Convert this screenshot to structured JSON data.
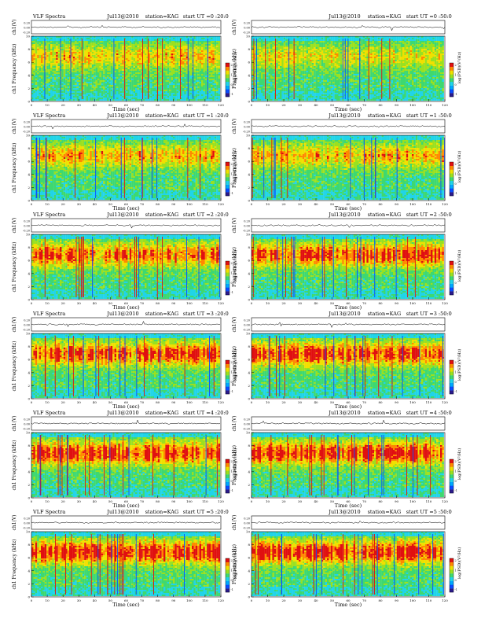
{
  "colors": {
    "background": "#ffffff",
    "axis": "#000000",
    "colormap": [
      "#2a1a8c",
      "#0a4cff",
      "#00a8ff",
      "#20d4e8",
      "#3ed870",
      "#9ae020",
      "#f0e000",
      "#ff8800",
      "#e01010"
    ]
  },
  "chart_data": [
    {
      "type": "heatmap",
      "header": {
        "left": "VLF Spectra",
        "date": "Jul13@2010",
        "station": "station=KAG",
        "start": "start  UT =0 :20:0"
      },
      "ch_ylabel": "ch1(V)",
      "ch_ticks": [
        "0.20",
        "0.00",
        "-0.20"
      ],
      "ylabel": "ch1 Frequency (kHz)",
      "xlabel": "Time (sec)",
      "xlim": [
        0,
        120
      ],
      "ylim": [
        0,
        10
      ],
      "xticks": [
        "0",
        "10",
        "20",
        "30",
        "40",
        "50",
        "60",
        "70",
        "80",
        "90",
        "100",
        "110",
        "120"
      ],
      "yticks": [
        "0",
        "2",
        "4",
        "6",
        "8",
        "10"
      ],
      "colorbar_label": "log(PSD)(V²/Hz)",
      "colorbar_ticks": [
        "2",
        "1",
        "0",
        "-1"
      ],
      "activity": 0.45
    },
    {
      "type": "heatmap",
      "header": {
        "left": "",
        "date": "Jul13@2010",
        "station": "station=KAG",
        "start": "start  UT =0 :50:0"
      },
      "ch_ylabel": "ch1(V)",
      "ch_ticks": [
        "0.20",
        "0.00",
        "-0.20"
      ],
      "ylabel": "Frequency (kHz)",
      "xlabel": "Time (sec)",
      "xlim": [
        0,
        120
      ],
      "ylim": [
        0,
        10
      ],
      "xticks": [
        "0",
        "10",
        "20",
        "30",
        "40",
        "50",
        "60",
        "70",
        "80",
        "90",
        "100",
        "110",
        "120"
      ],
      "yticks": [
        "0",
        "2",
        "4",
        "6",
        "8",
        "10"
      ],
      "colorbar_label": "log(PSD)(V²/Hz)",
      "colorbar_ticks": [
        "2",
        "1",
        "0",
        "-1"
      ],
      "activity": 0.35
    },
    {
      "type": "heatmap",
      "header": {
        "left": "VLF Spectra",
        "date": "Jul13@2010",
        "station": "station=KAG",
        "start": "start  UT =1 :20:0"
      },
      "ch_ylabel": "ch1(V)",
      "ch_ticks": [
        "0.20",
        "0.00",
        "-0.20"
      ],
      "ylabel": "ch1 Frequency (kHz)",
      "xlabel": "Time (sec)",
      "xlim": [
        0,
        120
      ],
      "ylim": [
        0,
        10
      ],
      "xticks": [
        "0",
        "10",
        "20",
        "30",
        "40",
        "50",
        "60",
        "70",
        "80",
        "90",
        "100",
        "110",
        "120"
      ],
      "yticks": [
        "0",
        "2",
        "4",
        "6",
        "8",
        "10"
      ],
      "colorbar_label": "log(PSD)(V²/Hz)",
      "colorbar_ticks": [
        "2",
        "1",
        "0",
        "-1"
      ],
      "activity": 0.5
    },
    {
      "type": "heatmap",
      "header": {
        "left": "",
        "date": "Jul13@2010",
        "station": "station=KAG",
        "start": "start  UT =1 :50:0"
      },
      "ch_ylabel": "ch1(V)",
      "ch_ticks": [
        "0.20",
        "0.00",
        "-0.20"
      ],
      "ylabel": "Frequency (kHz)",
      "xlabel": "Time (sec)",
      "xlim": [
        0,
        120
      ],
      "ylim": [
        0,
        10
      ],
      "xticks": [
        "0",
        "10",
        "20",
        "30",
        "40",
        "50",
        "60",
        "70",
        "80",
        "90",
        "100",
        "110",
        "120"
      ],
      "yticks": [
        "0",
        "2",
        "4",
        "6",
        "8",
        "10"
      ],
      "colorbar_label": "log(PSD)(V²/Hz)",
      "colorbar_ticks": [
        "2",
        "1",
        "0",
        "-1"
      ],
      "activity": 0.5
    },
    {
      "type": "heatmap",
      "header": {
        "left": "VLF Spectra",
        "date": "Jul13@2010",
        "station": "station=KAG",
        "start": "start  UT =2 :20:0"
      },
      "ch_ylabel": "ch1(V)",
      "ch_ticks": [
        "0.20",
        "0.00",
        "-0.20"
      ],
      "ylabel": "ch1 Frequency (kHz)",
      "xlabel": "Time (sec)",
      "xlim": [
        0,
        120
      ],
      "ylim": [
        0,
        10
      ],
      "xticks": [
        "0",
        "10",
        "20",
        "30",
        "40",
        "50",
        "60",
        "70",
        "80",
        "90",
        "100",
        "110",
        "120"
      ],
      "yticks": [
        "0",
        "2",
        "4",
        "6",
        "8",
        "10"
      ],
      "colorbar_label": "log(PSD)(V²/Hz)",
      "colorbar_ticks": [
        "2",
        "1",
        "0",
        "-1"
      ],
      "activity": 0.65
    },
    {
      "type": "heatmap",
      "header": {
        "left": "",
        "date": "Jul13@2010",
        "station": "station=KAG",
        "start": "start  UT =2 :50:0"
      },
      "ch_ylabel": "ch1(V)",
      "ch_ticks": [
        "0.20",
        "0.00",
        "-0.20"
      ],
      "ylabel": "Frequency (kHz)",
      "xlabel": "Time (sec)",
      "xlim": [
        0,
        120
      ],
      "ylim": [
        0,
        10
      ],
      "xticks": [
        "0",
        "10",
        "20",
        "30",
        "40",
        "50",
        "60",
        "70",
        "80",
        "90",
        "100",
        "110",
        "120"
      ],
      "yticks": [
        "0",
        "2",
        "4",
        "6",
        "8",
        "10"
      ],
      "colorbar_label": "log(PSD)(V²/Hz)",
      "colorbar_ticks": [
        "2",
        "1",
        "0",
        "-1"
      ],
      "activity": 0.7
    },
    {
      "type": "heatmap",
      "header": {
        "left": "VLF Spectra",
        "date": "Jul13@2010",
        "station": "station=KAG",
        "start": "start  UT =3 :20:0"
      },
      "ch_ylabel": "ch1(V)",
      "ch_ticks": [
        "0.20",
        "0.00",
        "-0.20"
      ],
      "ylabel": "ch1 Frequency (kHz)",
      "xlabel": "Time (sec)",
      "xlim": [
        0,
        120
      ],
      "ylim": [
        0,
        10
      ],
      "xticks": [
        "0",
        "10",
        "20",
        "30",
        "40",
        "50",
        "60",
        "70",
        "80",
        "90",
        "100",
        "110",
        "120"
      ],
      "yticks": [
        "0",
        "2",
        "4",
        "6",
        "8",
        "10"
      ],
      "colorbar_label": "log(PSD)(V²/Hz)",
      "colorbar_ticks": [
        "2",
        "1",
        "0",
        "-1"
      ],
      "activity": 0.7
    },
    {
      "type": "heatmap",
      "header": {
        "left": "",
        "date": "Jul13@2010",
        "station": "station=KAG",
        "start": "start  UT =3 :50:0"
      },
      "ch_ylabel": "ch1(V)",
      "ch_ticks": [
        "0.20",
        "0.00",
        "-0.20"
      ],
      "ylabel": "Frequency (kHz)",
      "xlabel": "Time (sec)",
      "xlim": [
        0,
        120
      ],
      "ylim": [
        0,
        10
      ],
      "xticks": [
        "0",
        "10",
        "20",
        "30",
        "40",
        "50",
        "60",
        "70",
        "80",
        "90",
        "100",
        "110",
        "120"
      ],
      "yticks": [
        "0",
        "2",
        "4",
        "6",
        "8",
        "10"
      ],
      "colorbar_label": "log(PSD)(V²/Hz)",
      "colorbar_ticks": [
        "2",
        "1",
        "0",
        "-1"
      ],
      "activity": 0.72
    },
    {
      "type": "heatmap",
      "header": {
        "left": "VLF Spectra",
        "date": "Jul13@2010",
        "station": "station=KAG",
        "start": "start  UT =4 :20:0"
      },
      "ch_ylabel": "ch1(V)",
      "ch_ticks": [
        "0.20",
        "0.00",
        "-0.20"
      ],
      "ylabel": "ch1 Frequency (kHz)",
      "xlabel": "Time (sec)",
      "xlim": [
        0,
        120
      ],
      "ylim": [
        0,
        10
      ],
      "xticks": [
        "0",
        "10",
        "20",
        "30",
        "40",
        "50",
        "60",
        "70",
        "80",
        "90",
        "100",
        "110",
        "120"
      ],
      "yticks": [
        "0",
        "2",
        "4",
        "6",
        "8",
        "10"
      ],
      "colorbar_label": "log(PSD)(V²/Hz)",
      "colorbar_ticks": [
        "2",
        "1",
        "0",
        "-1"
      ],
      "activity": 0.75
    },
    {
      "type": "heatmap",
      "header": {
        "left": "",
        "date": "Jul13@2010",
        "station": "station=KAG",
        "start": "start  UT =4 :50:0"
      },
      "ch_ylabel": "ch1(V)",
      "ch_ticks": [
        "0.20",
        "0.00",
        "-0.20"
      ],
      "ylabel": "Frequency (kHz)",
      "xlabel": "Time (sec)",
      "xlim": [
        0,
        120
      ],
      "ylim": [
        0,
        10
      ],
      "xticks": [
        "0",
        "10",
        "20",
        "30",
        "40",
        "50",
        "60",
        "70",
        "80",
        "90",
        "100",
        "110",
        "120"
      ],
      "yticks": [
        "0",
        "2",
        "4",
        "6",
        "8",
        "10"
      ],
      "colorbar_label": "log(PSD)(V²/Hz)",
      "colorbar_ticks": [
        "2",
        "1",
        "0",
        "-1"
      ],
      "activity": 0.75
    },
    {
      "type": "heatmap",
      "header": {
        "left": "VLF Spectra",
        "date": "Jul13@2010",
        "station": "station=KAG",
        "start": "start  UT =5 :20:0"
      },
      "ch_ylabel": "ch1(V)",
      "ch_ticks": [
        "0.20",
        "0.00",
        "-0.20"
      ],
      "ylabel": "ch1 Frequency (kHz)",
      "xlabel": "Time (sec)",
      "xlim": [
        0,
        120
      ],
      "ylim": [
        0,
        10
      ],
      "xticks": [
        "0",
        "10",
        "20",
        "30",
        "40",
        "50",
        "60",
        "70",
        "80",
        "90",
        "100",
        "110",
        "120"
      ],
      "yticks": [
        "0",
        "2",
        "4",
        "6",
        "8",
        "10"
      ],
      "colorbar_label": "log(PSD)(V²/Hz)",
      "colorbar_ticks": [
        "2",
        "1",
        "0",
        "-1"
      ],
      "activity": 0.8
    },
    {
      "type": "heatmap",
      "header": {
        "left": "",
        "date": "Jul13@2010",
        "station": "station=KAG",
        "start": "start  UT =5 :50:0"
      },
      "ch_ylabel": "ch1(V)",
      "ch_ticks": [
        "0.20",
        "0.00",
        "-0.20"
      ],
      "ylabel": "Frequency (kHz)",
      "xlabel": "Time (sec)",
      "xlim": [
        0,
        120
      ],
      "ylim": [
        0,
        10
      ],
      "xticks": [
        "0",
        "10",
        "20",
        "30",
        "40",
        "50",
        "60",
        "70",
        "80",
        "90",
        "100",
        "110",
        "120"
      ],
      "yticks": [
        "0",
        "2",
        "4",
        "6",
        "8",
        "10"
      ],
      "colorbar_label": "log(PSD)(V²/Hz)",
      "colorbar_ticks": [
        "2",
        "1",
        "0",
        "-1"
      ],
      "activity": 0.8
    }
  ]
}
